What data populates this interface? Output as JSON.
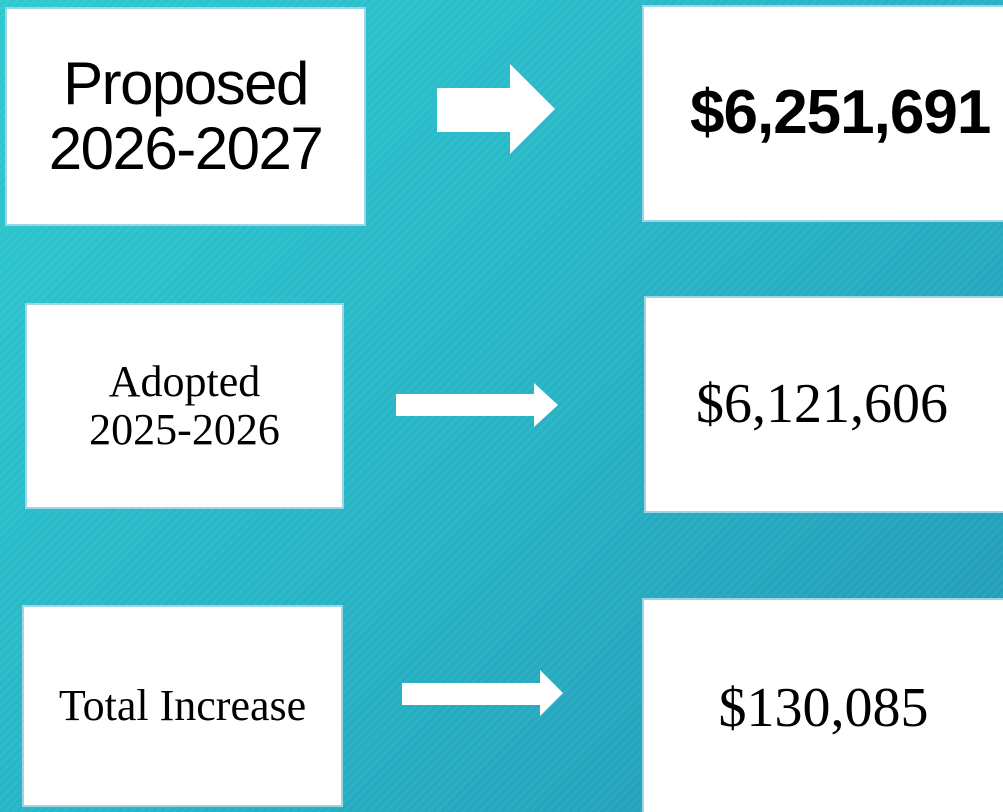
{
  "rows": [
    {
      "label": [
        "Proposed",
        "2026-2027"
      ],
      "value": "$6,251,691"
    },
    {
      "label": [
        "Adopted",
        "2025-2026"
      ],
      "value": "$6,121,606"
    },
    {
      "label": [
        "Total Increase"
      ],
      "value": "$130,085"
    }
  ]
}
